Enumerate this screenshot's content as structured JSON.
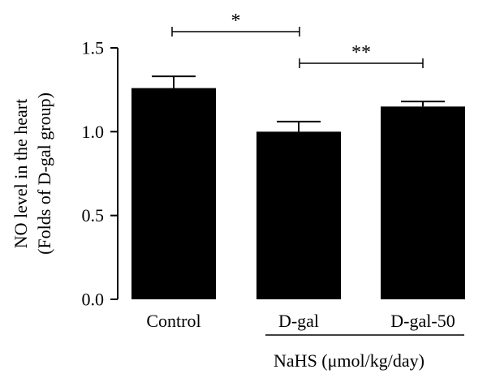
{
  "chart_data": {
    "type": "bar",
    "categories": [
      "Control",
      "D-gal",
      "D-gal-50"
    ],
    "values": [
      1.26,
      1.0,
      1.15
    ],
    "errors": [
      0.07,
      0.06,
      0.03
    ],
    "ylabel_line1": "NO level in the heart",
    "ylabel_line2": "(Folds of D-gal group)",
    "xlabel": "NaHS (μmol/kg/day)",
    "ylim": [
      0,
      1.5
    ],
    "yticks": [
      "0.0",
      "0.5",
      "1.0",
      "1.5"
    ],
    "ytick_values": [
      0,
      0.5,
      1.0,
      1.5
    ],
    "bar_color": "#000000",
    "significance": [
      {
        "from": 0,
        "to": 1,
        "label": "*"
      },
      {
        "from": 1,
        "to": 2,
        "label": "**"
      }
    ]
  }
}
